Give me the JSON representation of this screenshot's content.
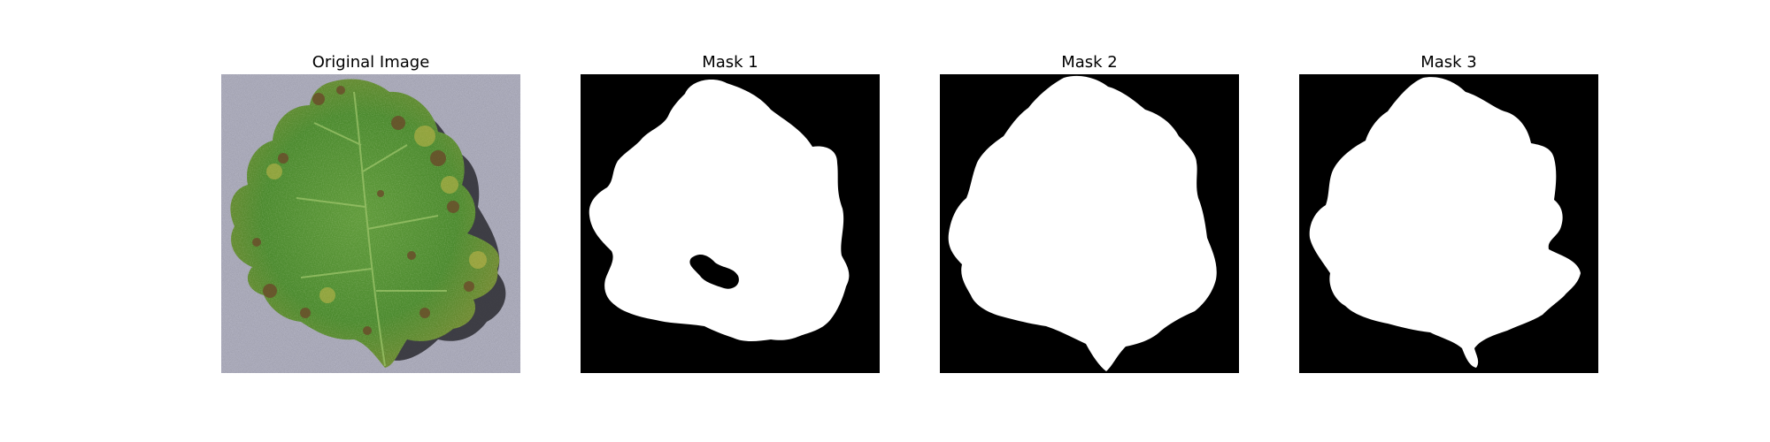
{
  "panels": [
    {
      "title": "Original Image",
      "kind": "photo",
      "subject": "tomato leaf with leaf-spot disease on grey textured background"
    },
    {
      "title": "Mask 1",
      "kind": "mask",
      "mask_color": "#ffffff",
      "background_color": "#000000"
    },
    {
      "title": "Mask 2",
      "kind": "mask",
      "mask_color": "#ffffff",
      "background_color": "#000000"
    },
    {
      "title": "Mask 3",
      "kind": "mask",
      "mask_color": "#ffffff",
      "background_color": "#000000"
    }
  ]
}
